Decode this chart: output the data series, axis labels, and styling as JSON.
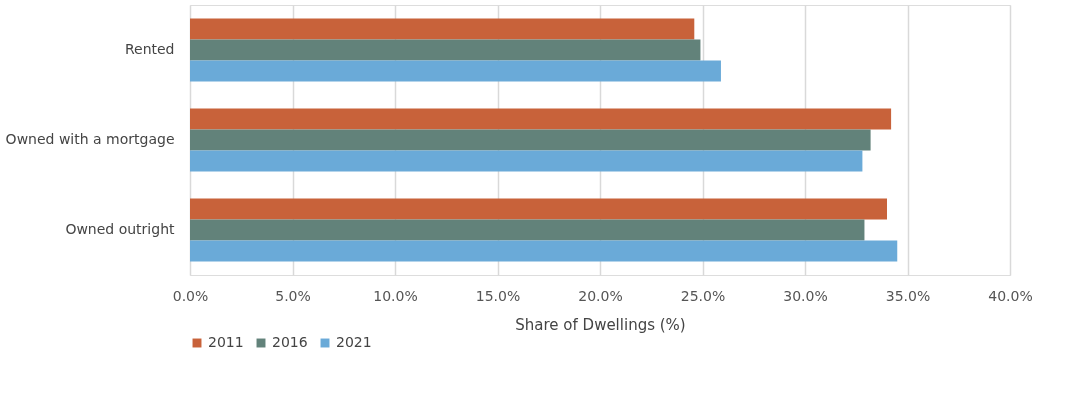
{
  "chart_data": {
    "type": "bar",
    "orientation": "horizontal",
    "categories": [
      "Rented",
      "Owned with a mortgage",
      "Owned outright"
    ],
    "xlabel": "Share of Dwellings (%)",
    "series": [
      {
        "name": "2011",
        "color": "#c8623a",
        "values": [
          24.6,
          34.2,
          34.0
        ]
      },
      {
        "name": "2016",
        "color": "#62827a",
        "values": [
          24.9,
          33.2,
          32.9
        ]
      },
      {
        "name": "2021",
        "color": "#6aaad8",
        "values": [
          25.9,
          32.8,
          34.5
        ]
      }
    ],
    "xlim": [
      0,
      40
    ],
    "xticks": [
      {
        "value": 0,
        "label": "0.0%"
      },
      {
        "value": 5,
        "label": "5.0%"
      },
      {
        "value": 10,
        "label": "10.0%"
      },
      {
        "value": 15,
        "label": "15.0%"
      },
      {
        "value": 20,
        "label": "20.0%"
      },
      {
        "value": 25,
        "label": "25.0%"
      },
      {
        "value": 30,
        "label": "30.0%"
      },
      {
        "value": 35,
        "label": "35.0%"
      },
      {
        "value": 40,
        "label": "40.0%"
      }
    ],
    "grid": "x",
    "legend": "bottom left"
  }
}
